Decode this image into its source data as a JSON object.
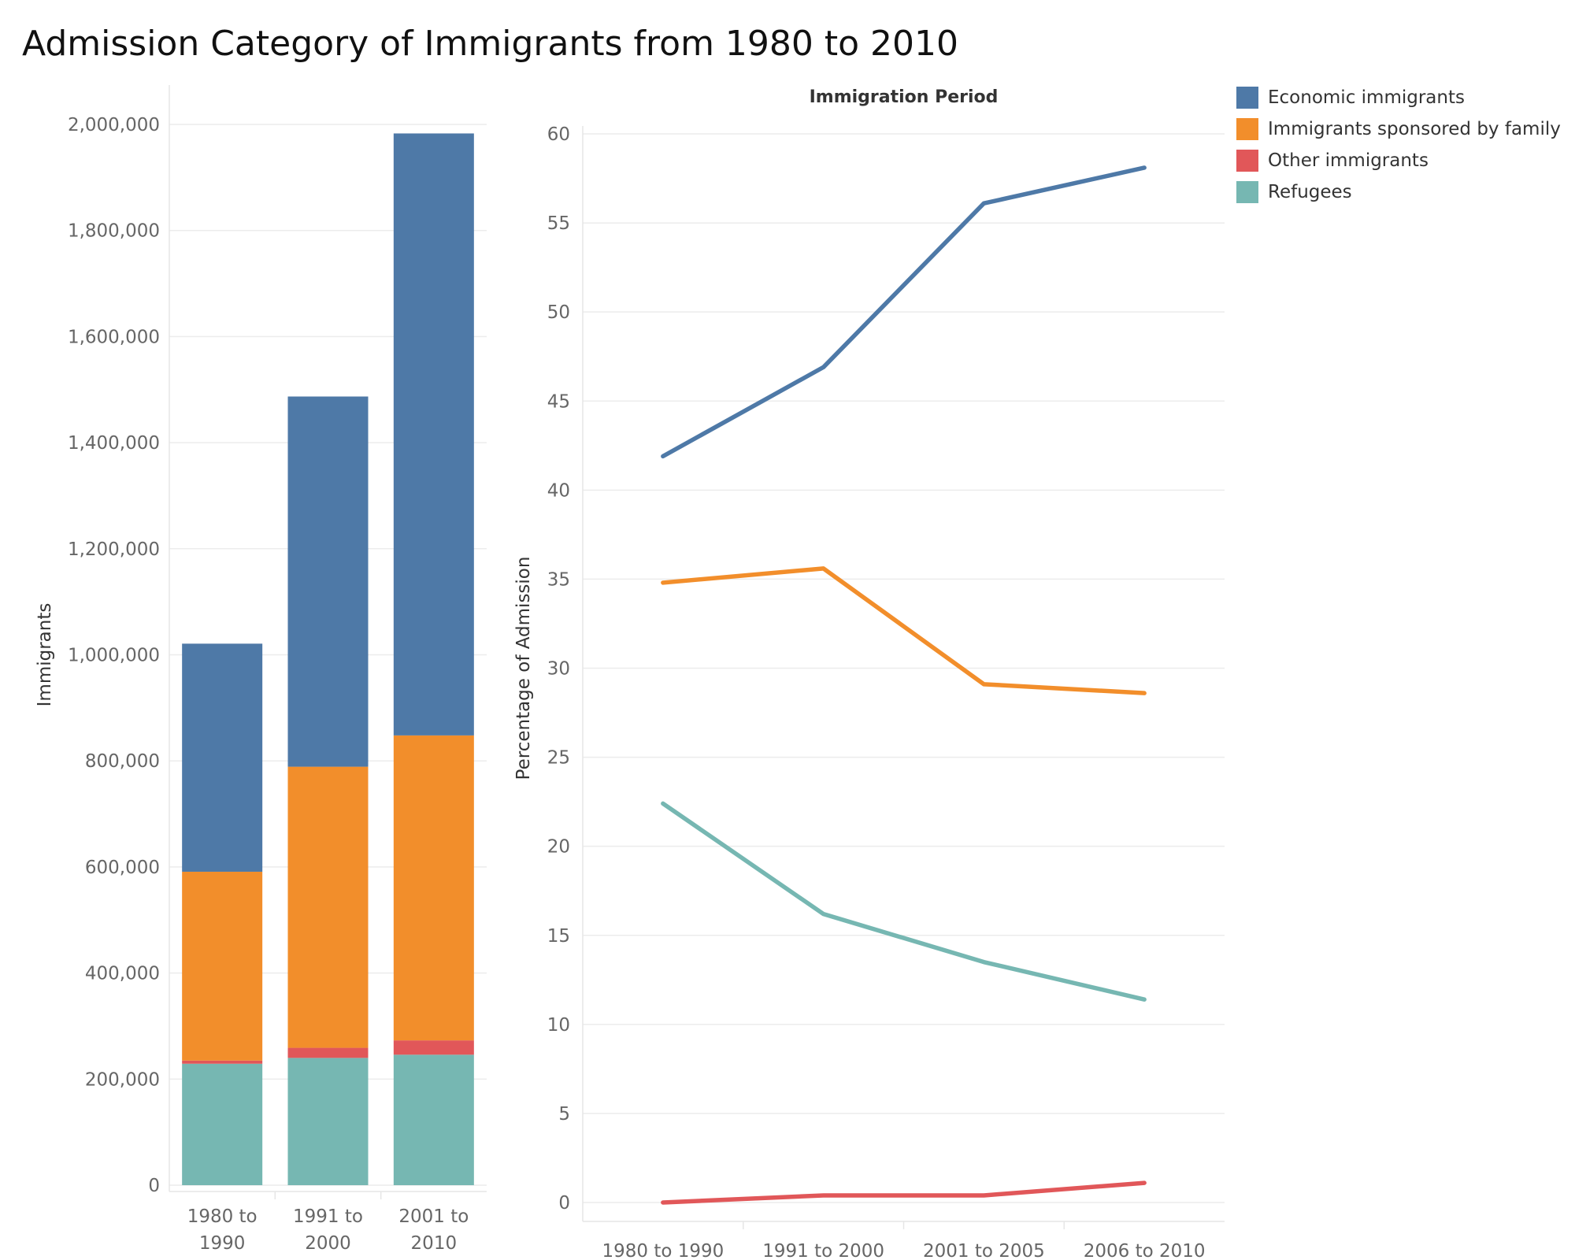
{
  "title": "Admission Category of Immigrants from 1980 to 2010",
  "legend": [
    {
      "label": "Economic immigrants",
      "color": "#4e79a7"
    },
    {
      "label": "Immigrants sponsored by family",
      "color": "#f28e2b"
    },
    {
      "label": "Other immigrants",
      "color": "#e15759"
    },
    {
      "label": "Refugees",
      "color": "#76b7b2"
    }
  ],
  "chart_data": [
    {
      "type": "bar",
      "stacked": true,
      "categories": [
        "1980 to 1990",
        "1991 to 2000",
        "2001 to 2010"
      ],
      "category_labels": [
        [
          "1980 to",
          "1990"
        ],
        [
          "1991 to",
          "2000"
        ],
        [
          "2001 to",
          "2010"
        ]
      ],
      "series": [
        {
          "name": "Refugees",
          "color": "#76b7b2",
          "values": [
            229000,
            240000,
            246000
          ]
        },
        {
          "name": "Other immigrants",
          "color": "#e15759",
          "values": [
            6000,
            19000,
            27000
          ]
        },
        {
          "name": "Immigrants sponsored by family",
          "color": "#f28e2b",
          "values": [
            356000,
            530000,
            575000
          ]
        },
        {
          "name": "Economic immigrants",
          "color": "#4e79a7",
          "values": [
            430000,
            698000,
            1135000
          ]
        }
      ],
      "ylabel": "Immigrants",
      "ylim": [
        0,
        2000000
      ],
      "yticks": [
        0,
        200000,
        400000,
        600000,
        800000,
        1000000,
        1200000,
        1400000,
        1600000,
        1800000,
        2000000
      ],
      "ytick_labels": [
        "0",
        "200,000",
        "400,000",
        "600,000",
        "800,000",
        "1,000,000",
        "1,200,000",
        "1,400,000",
        "1,600,000",
        "1,800,000",
        "2,000,000"
      ],
      "grid": true
    },
    {
      "type": "line",
      "title": "Immigration Period",
      "categories": [
        "1980 to 1990",
        "1991 to 2000",
        "2001 to 2005",
        "2006 to 2010"
      ],
      "series": [
        {
          "name": "Economic immigrants",
          "color": "#4e79a7",
          "values": [
            41.9,
            46.9,
            56.1,
            58.1
          ]
        },
        {
          "name": "Immigrants sponsored by family",
          "color": "#f28e2b",
          "values": [
            34.8,
            35.6,
            29.1,
            28.6
          ]
        },
        {
          "name": "Refugees",
          "color": "#76b7b2",
          "values": [
            22.4,
            16.2,
            13.5,
            11.4
          ]
        },
        {
          "name": "Other immigrants",
          "color": "#e15759",
          "values": [
            0.0,
            0.4,
            0.4,
            1.1
          ]
        }
      ],
      "ylabel": "Percentage of Admission",
      "ylim": [
        0,
        60
      ],
      "yticks": [
        0,
        5,
        10,
        15,
        20,
        25,
        30,
        35,
        40,
        45,
        50,
        55,
        60
      ],
      "grid": true
    }
  ]
}
